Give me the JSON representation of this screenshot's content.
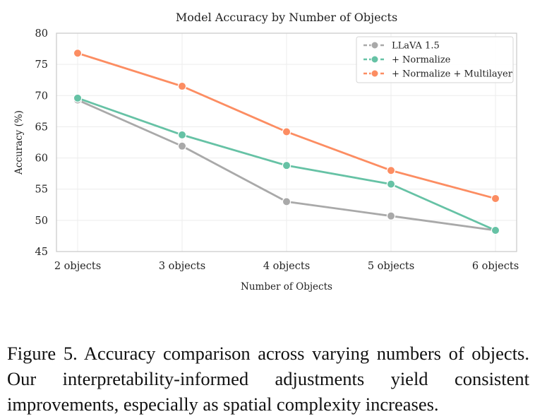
{
  "chart_data": {
    "type": "line",
    "title": "Model Accuracy by Number of Objects",
    "xlabel": "Number of Objects",
    "ylabel": "Accuracy (%)",
    "categories": [
      "2 objects",
      "3 objects",
      "4 objects",
      "5 objects",
      "6 objects"
    ],
    "ylim": [
      45,
      80
    ],
    "yticks": [
      45,
      50,
      55,
      60,
      65,
      70,
      75,
      80
    ],
    "grid": true,
    "legend_position": "top-right",
    "series": [
      {
        "name": "LLaVA 1.5",
        "color": "#a9a9a9",
        "values": [
          69.3,
          61.9,
          53.0,
          50.7,
          48.4
        ]
      },
      {
        "name": "+ Normalize",
        "color": "#66c2a5",
        "values": [
          69.6,
          63.7,
          58.8,
          55.8,
          48.4
        ]
      },
      {
        "name": "+ Normalize + Multilayer",
        "color": "#fc8d62",
        "values": [
          76.8,
          71.5,
          64.2,
          58.0,
          53.5
        ]
      }
    ]
  },
  "caption": "Figure 5.  Accuracy comparison across varying numbers of objects.  Our interpretability-informed adjustments yield consistent improvements, especially as spatial complexity increases."
}
